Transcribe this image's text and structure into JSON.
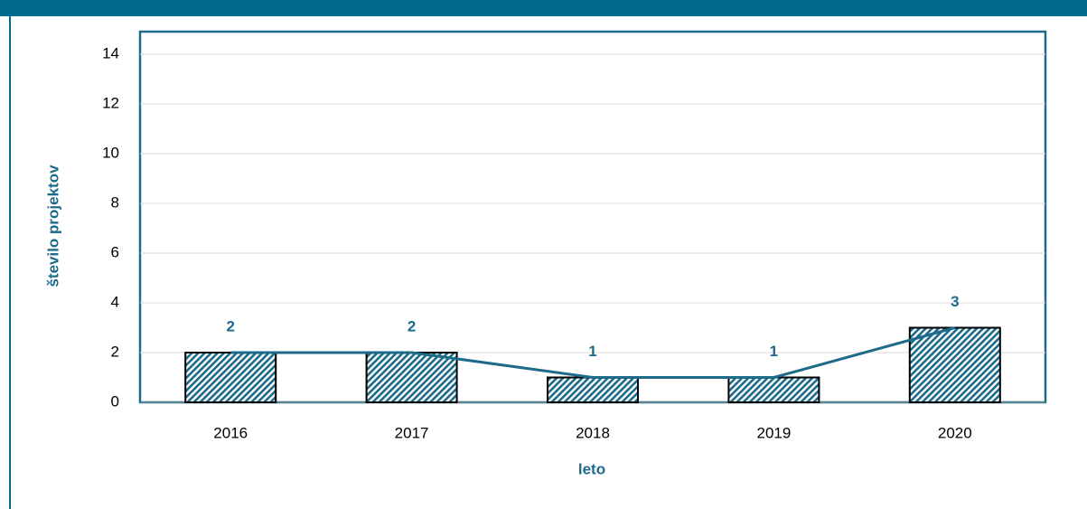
{
  "chart_data": {
    "type": "bar",
    "x_label": "leto",
    "y_label": "število projektov",
    "categories": [
      "2016",
      "2017",
      "2018",
      "2019",
      "2020"
    ],
    "values": [
      2,
      2,
      1,
      1,
      3
    ],
    "color": "#1d6a8a",
    "line_overlay": true,
    "data_labels": true,
    "ylim": [
      0,
      14
    ],
    "yticks": [
      0,
      2,
      4,
      6,
      8,
      10,
      12,
      14
    ],
    "grid": true
  }
}
